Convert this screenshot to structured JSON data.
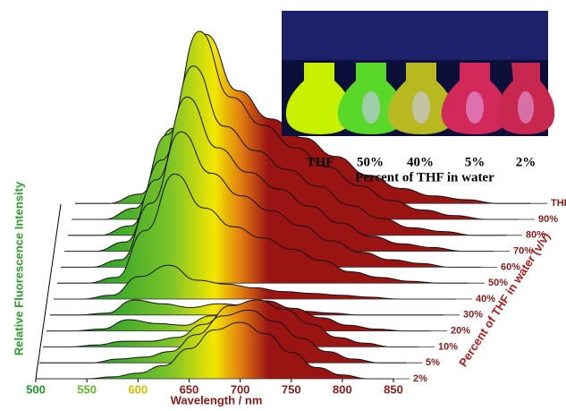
{
  "chart_data": {
    "type": "waterfall",
    "x_label": "Wavelength / nm",
    "y_label": "Relative Fluorescence Intensity",
    "z_label": "Percent of THF in water (v/v)",
    "x": [
      500,
      525,
      550,
      575,
      600,
      625,
      650,
      675,
      700,
      725,
      750,
      775,
      800,
      825,
      850
    ],
    "xlim": [
      500,
      850
    ],
    "xticks": [
      500,
      550,
      600,
      650,
      700,
      750,
      800,
      850
    ],
    "xtick_colors": [
      "#1f9a2a",
      "#5cb82a",
      "#c8c000",
      "#8b1a1a",
      "#8b1a1a",
      "#8b1a1a",
      "#8b1a1a",
      "#8b1a1a"
    ],
    "ylim": [
      0,
      100
    ],
    "series": [
      {
        "name": "THF",
        "values": [
          0,
          0,
          5,
          40,
          90,
          60,
          45,
          35,
          25,
          15,
          8,
          4,
          2,
          0,
          0
        ]
      },
      {
        "name": "90%",
        "values": [
          0,
          0,
          6,
          45,
          100,
          65,
          50,
          38,
          28,
          18,
          10,
          5,
          2,
          0,
          0
        ]
      },
      {
        "name": "80%",
        "values": [
          0,
          0,
          5,
          40,
          90,
          58,
          45,
          35,
          26,
          16,
          9,
          4,
          2,
          0,
          0
        ]
      },
      {
        "name": "70%",
        "values": [
          0,
          0,
          5,
          38,
          82,
          55,
          42,
          33,
          24,
          15,
          8,
          4,
          2,
          0,
          0
        ]
      },
      {
        "name": "60%",
        "values": [
          0,
          0,
          4,
          34,
          72,
          50,
          38,
          30,
          22,
          14,
          8,
          4,
          2,
          0,
          0
        ]
      },
      {
        "name": "50%",
        "values": [
          0,
          0,
          3,
          28,
          58,
          40,
          30,
          24,
          18,
          12,
          6,
          3,
          1,
          0,
          0
        ]
      },
      {
        "name": "40%",
        "values": [
          0,
          0,
          2,
          12,
          18,
          10,
          8,
          6,
          4,
          3,
          2,
          1,
          0,
          0,
          0
        ]
      },
      {
        "name": "30%",
        "values": [
          0,
          0,
          1,
          8,
          6,
          4,
          6,
          5,
          3,
          2,
          1,
          0,
          0,
          0,
          0
        ]
      },
      {
        "name": "20%",
        "values": [
          0,
          0,
          1,
          6,
          4,
          3,
          8,
          14,
          16,
          12,
          7,
          3,
          1,
          0,
          0
        ]
      },
      {
        "name": "10%",
        "values": [
          0,
          0,
          1,
          3,
          3,
          5,
          12,
          22,
          25,
          20,
          12,
          5,
          2,
          0,
          0
        ]
      },
      {
        "name": "5%",
        "values": [
          0,
          0,
          0,
          2,
          3,
          6,
          15,
          25,
          28,
          22,
          13,
          6,
          2,
          0,
          0
        ]
      },
      {
        "name": "2%",
        "values": [
          0,
          0,
          0,
          1,
          3,
          7,
          16,
          26,
          30,
          24,
          14,
          6,
          2,
          0,
          0
        ]
      }
    ]
  },
  "inset": {
    "labels": [
      "THF",
      "50%",
      "40%",
      "5%",
      "2%"
    ],
    "caption": "Percent of THF in water"
  }
}
